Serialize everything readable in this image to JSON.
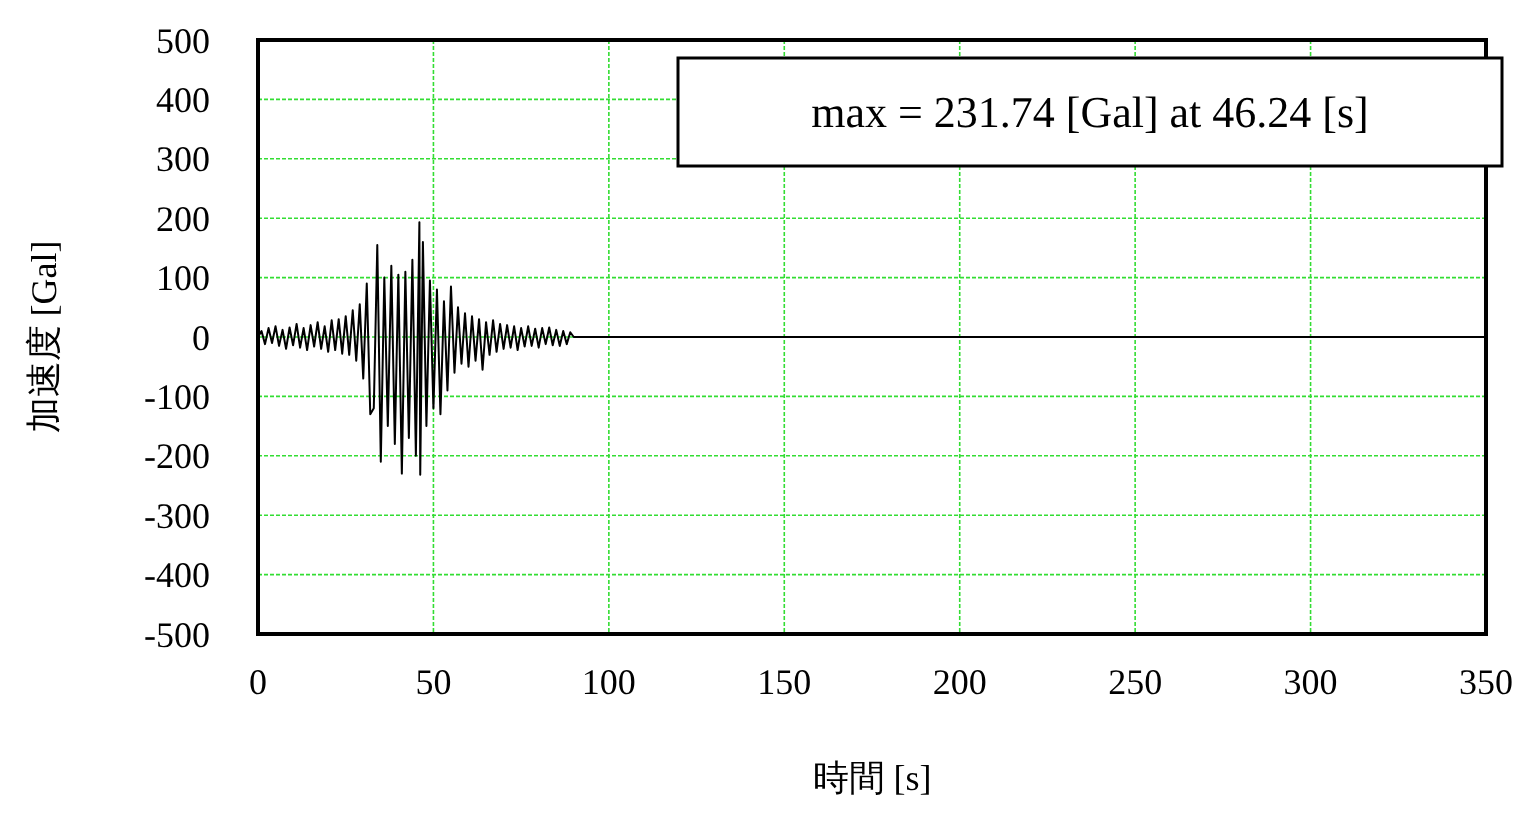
{
  "chart_data": {
    "type": "line",
    "xlabel": "時間 [s]",
    "ylabel": "加速度 [Gal]",
    "annotations": [
      "max = 231.74 [Gal] at 46.24 [s]"
    ],
    "xlim": [
      0,
      350
    ],
    "xticks": [
      0,
      50,
      100,
      150,
      200,
      250,
      300,
      350
    ],
    "ylim": [
      -500,
      500
    ],
    "yticks": [
      -500,
      -400,
      -300,
      -200,
      -100,
      0,
      100,
      200,
      300,
      400,
      500
    ],
    "grid": true,
    "series": [
      {
        "color": "#000000",
        "x": [
          0,
          1,
          2,
          3,
          4,
          5,
          6,
          7,
          8,
          9,
          10,
          11,
          12,
          13,
          14,
          15,
          16,
          17,
          18,
          19,
          20,
          21,
          22,
          23,
          24,
          25,
          26,
          27,
          28,
          29,
          30,
          31,
          32,
          33,
          34,
          35,
          36,
          37,
          38,
          39,
          40,
          41,
          42,
          43,
          44,
          45,
          46,
          46.24,
          47,
          48,
          49,
          50,
          51,
          52,
          53,
          54,
          55,
          56,
          57,
          58,
          59,
          60,
          61,
          62,
          63,
          64,
          65,
          66,
          67,
          68,
          69,
          70,
          71,
          72,
          73,
          74,
          75,
          76,
          77,
          78,
          79,
          80,
          81,
          82,
          83,
          84,
          85,
          86,
          87,
          88,
          89,
          90,
          350
        ],
        "values": [
          0,
          10,
          -12,
          15,
          -10,
          18,
          -15,
          12,
          -20,
          16,
          -14,
          22,
          -18,
          15,
          -22,
          20,
          -16,
          25,
          -20,
          18,
          -25,
          28,
          -22,
          30,
          -28,
          35,
          -30,
          45,
          -40,
          55,
          -70,
          90,
          -130,
          -120,
          155,
          -210,
          100,
          -150,
          120,
          -180,
          105,
          -230,
          110,
          -170,
          130,
          -200,
          193,
          -232,
          160,
          -150,
          95,
          -120,
          80,
          -130,
          60,
          -90,
          85,
          -60,
          50,
          -45,
          40,
          -50,
          35,
          -40,
          30,
          -55,
          25,
          -30,
          28,
          -25,
          22,
          -20,
          20,
          -18,
          18,
          -22,
          15,
          -16,
          18,
          -15,
          14,
          -18,
          15,
          -12,
          16,
          -14,
          12,
          -15,
          10,
          -12,
          8,
          0,
          0
        ]
      }
    ]
  }
}
